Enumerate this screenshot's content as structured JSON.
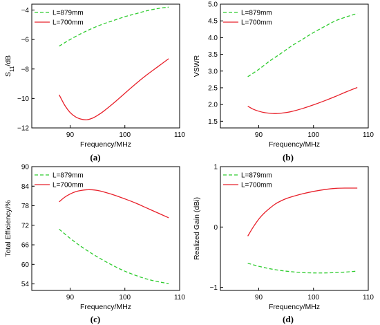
{
  "colors": {
    "l879": "#2ecc2e",
    "l700": "#e8202a",
    "axis": "#000000"
  },
  "chart_data": [
    {
      "type": "line",
      "panel_label": "(a)",
      "xlabel": "Frequency/MHz",
      "ylabel": "S",
      "ylabel_sub": "11",
      "ylabel_suffix": "/dB",
      "xlim": [
        83,
        110
      ],
      "ylim": [
        -12,
        -3.6
      ],
      "xticks": [
        90,
        100,
        110
      ],
      "yticks": [
        -12,
        -10,
        -8,
        -6,
        -4
      ],
      "legend_loc": "top-left",
      "series": [
        {
          "name": "L=879mm",
          "style": "dashed",
          "color": "#2ecc2e",
          "x": [
            88,
            90,
            92,
            94,
            96,
            98,
            100,
            102,
            104,
            106,
            108
          ],
          "y": [
            -6.45,
            -6.0,
            -5.6,
            -5.25,
            -4.95,
            -4.7,
            -4.45,
            -4.25,
            -4.05,
            -3.9,
            -3.8
          ]
        },
        {
          "name": "L=700mm",
          "style": "solid",
          "color": "#e8202a",
          "x": [
            88,
            89,
            90,
            91,
            92,
            93,
            94,
            95,
            96,
            98,
            100,
            102,
            104,
            106,
            108
          ],
          "y": [
            -9.75,
            -10.45,
            -10.95,
            -11.25,
            -11.4,
            -11.45,
            -11.35,
            -11.15,
            -10.9,
            -10.3,
            -9.65,
            -9.0,
            -8.4,
            -7.85,
            -7.3
          ]
        }
      ]
    },
    {
      "type": "line",
      "panel_label": "(b)",
      "xlabel": "Frequency/MHz",
      "ylabel": "VSWR",
      "xlim": [
        83,
        110
      ],
      "ylim": [
        1.3,
        5.0
      ],
      "xticks": [
        90,
        100,
        110
      ],
      "yticks": [
        1.5,
        2.0,
        2.5,
        3.0,
        3.5,
        4.0,
        4.5,
        5.0
      ],
      "ytick_labels": [
        "1.5",
        "2.0",
        "2.5",
        "3.0",
        "3.5",
        "4.0",
        "4.5",
        "5.0"
      ],
      "legend_loc": "top-left",
      "series": [
        {
          "name": "L=879mm",
          "style": "dashed",
          "color": "#2ecc2e",
          "x": [
            88,
            90,
            92,
            94,
            96,
            98,
            100,
            102,
            104,
            106,
            108
          ],
          "y": [
            2.83,
            3.05,
            3.3,
            3.52,
            3.75,
            3.95,
            4.15,
            4.33,
            4.5,
            4.62,
            4.72
          ]
        },
        {
          "name": "L=700mm",
          "style": "solid",
          "color": "#e8202a",
          "x": [
            88,
            89,
            90,
            91,
            92,
            93,
            94,
            95,
            96,
            98,
            100,
            102,
            104,
            106,
            108
          ],
          "y": [
            1.95,
            1.86,
            1.8,
            1.76,
            1.74,
            1.73,
            1.74,
            1.76,
            1.79,
            1.88,
            1.99,
            2.11,
            2.24,
            2.38,
            2.51
          ]
        }
      ]
    },
    {
      "type": "line",
      "panel_label": "(c)",
      "xlabel": "Frequency/MHz",
      "ylabel": "Total Efficiency/%",
      "xlim": [
        83,
        110
      ],
      "ylim": [
        52,
        90
      ],
      "xticks": [
        90,
        100,
        110
      ],
      "yticks": [
        54,
        60,
        66,
        72,
        78,
        84,
        90
      ],
      "legend_loc": "top-left",
      "series": [
        {
          "name": "L=879mm",
          "style": "dashed",
          "color": "#2ecc2e",
          "x": [
            88,
            90,
            92,
            94,
            96,
            98,
            100,
            102,
            104,
            106,
            108
          ],
          "y": [
            70.8,
            68.0,
            65.5,
            63.3,
            61.3,
            59.5,
            57.9,
            56.6,
            55.5,
            54.7,
            54.1
          ]
        },
        {
          "name": "L=700mm",
          "style": "solid",
          "color": "#e8202a",
          "x": [
            88,
            89,
            90,
            91,
            92,
            93,
            94,
            95,
            96,
            98,
            100,
            102,
            104,
            106,
            108
          ],
          "y": [
            79.2,
            80.6,
            81.6,
            82.3,
            82.7,
            82.9,
            82.9,
            82.7,
            82.3,
            81.3,
            80.1,
            78.8,
            77.3,
            75.8,
            74.3
          ]
        }
      ]
    },
    {
      "type": "line",
      "panel_label": "(d)",
      "xlabel": "Frequency/MHz",
      "ylabel": "Realized Gain (dBi)",
      "xlim": [
        83,
        110
      ],
      "ylim": [
        -1.05,
        1.0
      ],
      "xticks": [
        90,
        100,
        110
      ],
      "yticks": [
        -1,
        0,
        1
      ],
      "legend_loc": "top-left",
      "series": [
        {
          "name": "L=879mm",
          "style": "dashed",
          "color": "#2ecc2e",
          "x": [
            88,
            90,
            92,
            94,
            96,
            98,
            100,
            102,
            104,
            106,
            108
          ],
          "y": [
            -0.6,
            -0.65,
            -0.69,
            -0.72,
            -0.74,
            -0.755,
            -0.76,
            -0.76,
            -0.755,
            -0.745,
            -0.73
          ]
        },
        {
          "name": "L=700mm",
          "style": "solid",
          "color": "#e8202a",
          "x": [
            88,
            89,
            90,
            91,
            92,
            93,
            94,
            95,
            96,
            98,
            100,
            102,
            104,
            106,
            108
          ],
          "y": [
            -0.15,
            0.0,
            0.13,
            0.23,
            0.31,
            0.38,
            0.43,
            0.47,
            0.5,
            0.55,
            0.59,
            0.62,
            0.64,
            0.645,
            0.645
          ]
        }
      ]
    }
  ]
}
